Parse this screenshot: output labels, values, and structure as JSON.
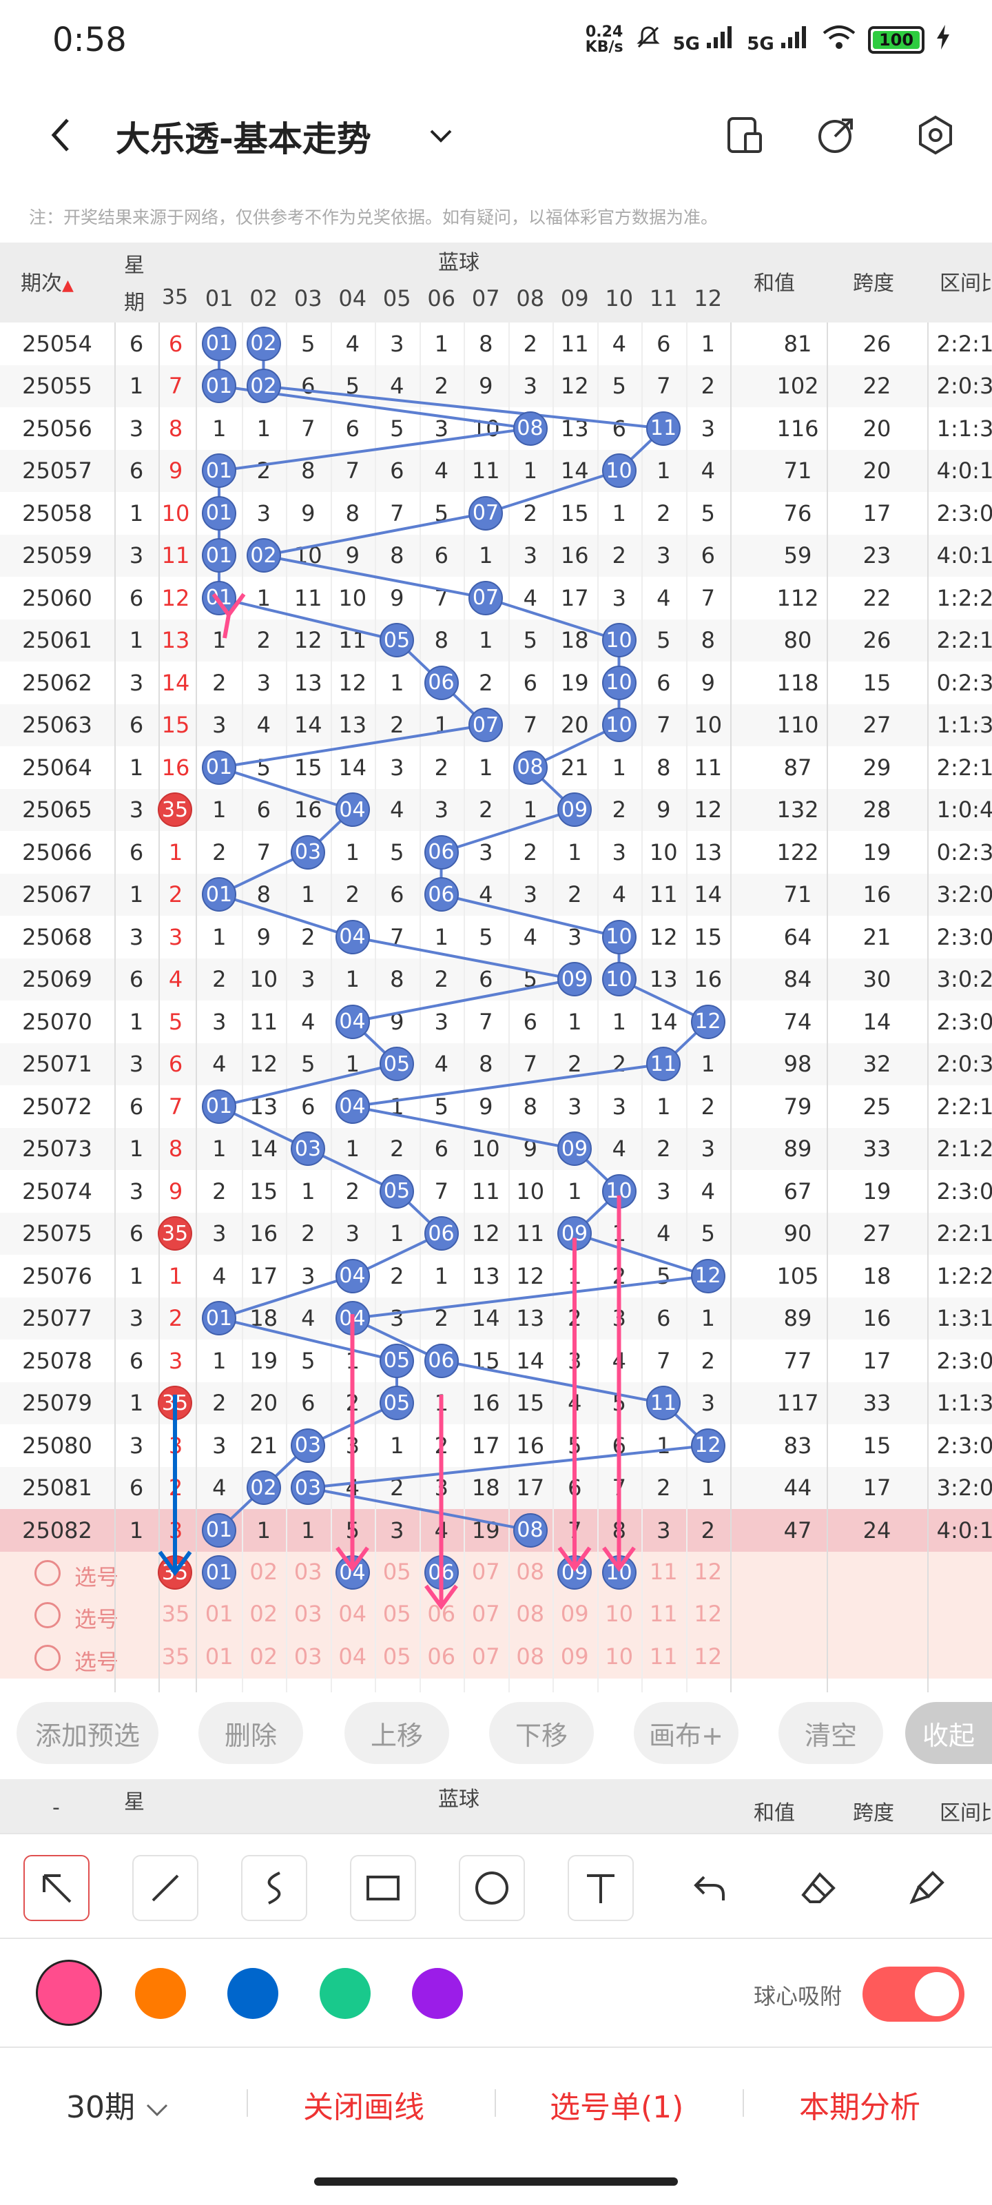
{
  "status_bar": {
    "time": "0:58",
    "net_speed_value": "0.24",
    "net_speed_unit": "KB/s",
    "signal_1": "5G",
    "signal_2": "5G",
    "battery": "100"
  },
  "header": {
    "title": "大乐透-基本走势",
    "icons": [
      "back-icon",
      "chevron-down-icon",
      "phone-icon",
      "share-icon",
      "settings-icon"
    ]
  },
  "note": "注：开奖结果来源于网络，仅供参考不作为兑奖依据。如有疑问，以福体彩官方数据为准。",
  "table": {
    "col_issue": "期次",
    "col_week": "星期",
    "col_week_top": "星",
    "col_week_bottom": "期",
    "col_blue_group": "蓝球",
    "col_sum": "和值",
    "col_span": "跨度",
    "col_zone": "区间比",
    "front_last_label": "35",
    "blue_labels": [
      "01",
      "02",
      "03",
      "04",
      "05",
      "06",
      "07",
      "08",
      "09",
      "10",
      "11",
      "12"
    ],
    "rows": [
      {
        "issue": "25054",
        "week": "6",
        "miss": "6",
        "nums": [
          "01",
          "02",
          "5",
          "4",
          "3",
          "1",
          "8",
          "2",
          "11",
          "4",
          "6",
          "1"
        ],
        "hit": [
          0,
          1
        ],
        "sum": "81",
        "span": "26",
        "zone": "2:2:1"
      },
      {
        "issue": "25055",
        "week": "1",
        "miss": "7",
        "nums": [
          "01",
          "02",
          "6",
          "5",
          "4",
          "2",
          "9",
          "3",
          "12",
          "5",
          "7",
          "2"
        ],
        "hit": [
          0,
          1
        ],
        "sum": "102",
        "span": "22",
        "zone": "2:0:3"
      },
      {
        "issue": "25056",
        "week": "3",
        "miss": "8",
        "nums": [
          "1",
          "1",
          "7",
          "6",
          "5",
          "3",
          "10",
          "08",
          "13",
          "6",
          "11",
          "3"
        ],
        "hit": [
          7,
          10
        ],
        "sum": "116",
        "span": "20",
        "zone": "1:1:3"
      },
      {
        "issue": "25057",
        "week": "6",
        "miss": "9",
        "nums": [
          "01",
          "2",
          "8",
          "7",
          "6",
          "4",
          "11",
          "1",
          "14",
          "10",
          "1",
          "4"
        ],
        "hit": [
          0,
          9
        ],
        "sum": "71",
        "span": "20",
        "zone": "4:0:1"
      },
      {
        "issue": "25058",
        "week": "1",
        "miss": "10",
        "nums": [
          "01",
          "3",
          "9",
          "8",
          "7",
          "5",
          "07",
          "2",
          "15",
          "1",
          "2",
          "5"
        ],
        "hit": [
          0,
          6
        ],
        "sum": "76",
        "span": "17",
        "zone": "2:3:0"
      },
      {
        "issue": "25059",
        "week": "3",
        "miss": "11",
        "nums": [
          "01",
          "02",
          "10",
          "9",
          "8",
          "6",
          "1",
          "3",
          "16",
          "2",
          "3",
          "6"
        ],
        "hit": [
          0,
          1
        ],
        "sum": "59",
        "span": "23",
        "zone": "4:0:1"
      },
      {
        "issue": "25060",
        "week": "6",
        "miss": "12",
        "nums": [
          "01",
          "1",
          "11",
          "10",
          "9",
          "7",
          "07",
          "4",
          "17",
          "3",
          "4",
          "7"
        ],
        "hit": [
          0,
          6
        ],
        "sum": "112",
        "span": "22",
        "zone": "1:2:2"
      },
      {
        "issue": "25061",
        "week": "1",
        "miss": "13",
        "nums": [
          "1",
          "2",
          "12",
          "11",
          "05",
          "8",
          "1",
          "5",
          "18",
          "10",
          "5",
          "8"
        ],
        "hit": [
          4,
          9
        ],
        "sum": "80",
        "span": "26",
        "zone": "2:2:1"
      },
      {
        "issue": "25062",
        "week": "3",
        "miss": "14",
        "nums": [
          "2",
          "3",
          "13",
          "12",
          "1",
          "06",
          "2",
          "6",
          "19",
          "10",
          "6",
          "9"
        ],
        "hit": [
          5,
          9
        ],
        "sum": "118",
        "span": "15",
        "zone": "0:2:3"
      },
      {
        "issue": "25063",
        "week": "6",
        "miss": "15",
        "nums": [
          "3",
          "4",
          "14",
          "13",
          "2",
          "1",
          "07",
          "7",
          "20",
          "10",
          "7",
          "10"
        ],
        "hit": [
          6,
          9
        ],
        "sum": "110",
        "span": "27",
        "zone": "1:1:3"
      },
      {
        "issue": "25064",
        "week": "1",
        "miss": "16",
        "nums": [
          "01",
          "5",
          "15",
          "14",
          "3",
          "2",
          "1",
          "08",
          "21",
          "1",
          "8",
          "11"
        ],
        "hit": [
          0,
          7
        ],
        "sum": "87",
        "span": "29",
        "zone": "2:2:1"
      },
      {
        "issue": "25065",
        "week": "3",
        "miss": "35",
        "nums": [
          "1",
          "6",
          "16",
          "04",
          "4",
          "3",
          "2",
          "1",
          "09",
          "2",
          "9",
          "12"
        ],
        "hit": [
          3,
          8
        ],
        "sum": "132",
        "span": "28",
        "zone": "1:0:4"
      },
      {
        "issue": "25066",
        "week": "6",
        "miss": "1",
        "nums": [
          "2",
          "7",
          "03",
          "1",
          "5",
          "06",
          "3",
          "2",
          "1",
          "3",
          "10",
          "13"
        ],
        "hit": [
          2,
          5
        ],
        "sum": "122",
        "span": "19",
        "zone": "0:2:3"
      },
      {
        "issue": "25067",
        "week": "1",
        "miss": "2",
        "nums": [
          "01",
          "8",
          "1",
          "2",
          "6",
          "06",
          "4",
          "3",
          "2",
          "4",
          "11",
          "14"
        ],
        "hit": [
          0,
          5
        ],
        "sum": "71",
        "span": "16",
        "zone": "3:2:0"
      },
      {
        "issue": "25068",
        "week": "3",
        "miss": "3",
        "nums": [
          "1",
          "9",
          "2",
          "04",
          "7",
          "1",
          "5",
          "4",
          "3",
          "10",
          "12",
          "15"
        ],
        "hit": [
          3,
          9
        ],
        "sum": "64",
        "span": "21",
        "zone": "2:3:0"
      },
      {
        "issue": "25069",
        "week": "6",
        "miss": "4",
        "nums": [
          "2",
          "10",
          "3",
          "1",
          "8",
          "2",
          "6",
          "5",
          "09",
          "10",
          "13",
          "16"
        ],
        "hit": [
          8,
          9
        ],
        "sum": "84",
        "span": "30",
        "zone": "3:0:2"
      },
      {
        "issue": "25070",
        "week": "1",
        "miss": "5",
        "nums": [
          "3",
          "11",
          "4",
          "04",
          "9",
          "3",
          "7",
          "6",
          "1",
          "1",
          "14",
          "12"
        ],
        "hit": [
          3,
          11
        ],
        "sum": "74",
        "span": "14",
        "zone": "2:3:0"
      },
      {
        "issue": "25071",
        "week": "3",
        "miss": "6",
        "nums": [
          "4",
          "12",
          "5",
          "1",
          "05",
          "4",
          "8",
          "7",
          "2",
          "2",
          "11",
          "1"
        ],
        "hit": [
          4,
          10
        ],
        "sum": "98",
        "span": "32",
        "zone": "2:0:3"
      },
      {
        "issue": "25072",
        "week": "6",
        "miss": "7",
        "nums": [
          "01",
          "13",
          "6",
          "04",
          "1",
          "5",
          "9",
          "8",
          "3",
          "3",
          "1",
          "2"
        ],
        "hit": [
          0,
          3
        ],
        "sum": "79",
        "span": "25",
        "zone": "2:2:1"
      },
      {
        "issue": "25073",
        "week": "1",
        "miss": "8",
        "nums": [
          "1",
          "14",
          "03",
          "1",
          "2",
          "6",
          "10",
          "9",
          "09",
          "4",
          "2",
          "3"
        ],
        "hit": [
          2,
          8
        ],
        "sum": "89",
        "span": "33",
        "zone": "2:1:2"
      },
      {
        "issue": "25074",
        "week": "3",
        "miss": "9",
        "nums": [
          "2",
          "15",
          "1",
          "2",
          "05",
          "7",
          "11",
          "10",
          "1",
          "10",
          "3",
          "4"
        ],
        "hit": [
          4,
          9
        ],
        "sum": "67",
        "span": "19",
        "zone": "2:3:0"
      },
      {
        "issue": "25075",
        "week": "6",
        "miss": "35",
        "nums": [
          "3",
          "16",
          "2",
          "3",
          "1",
          "06",
          "12",
          "11",
          "09",
          "1",
          "4",
          "5"
        ],
        "hit": [
          5,
          8
        ],
        "sum": "90",
        "span": "27",
        "zone": "2:2:1"
      },
      {
        "issue": "25076",
        "week": "1",
        "miss": "1",
        "nums": [
          "4",
          "17",
          "3",
          "04",
          "2",
          "1",
          "13",
          "12",
          "1",
          "2",
          "5",
          "12"
        ],
        "hit": [
          3,
          11
        ],
        "sum": "105",
        "span": "18",
        "zone": "1:2:2"
      },
      {
        "issue": "25077",
        "week": "3",
        "miss": "2",
        "nums": [
          "01",
          "18",
          "4",
          "04",
          "3",
          "2",
          "14",
          "13",
          "2",
          "3",
          "6",
          "1"
        ],
        "hit": [
          0,
          3
        ],
        "sum": "89",
        "span": "16",
        "zone": "1:3:1"
      },
      {
        "issue": "25078",
        "week": "6",
        "miss": "3",
        "nums": [
          "1",
          "19",
          "5",
          "1",
          "05",
          "06",
          "15",
          "14",
          "3",
          "4",
          "7",
          "2"
        ],
        "hit": [
          4,
          5
        ],
        "sum": "77",
        "span": "17",
        "zone": "2:3:0"
      },
      {
        "issue": "25079",
        "week": "1",
        "miss": "35",
        "nums": [
          "2",
          "20",
          "6",
          "2",
          "05",
          "1",
          "16",
          "15",
          "4",
          "5",
          "11",
          "3"
        ],
        "hit": [
          4,
          10
        ],
        "sum": "117",
        "span": "33",
        "zone": "1:1:3"
      },
      {
        "issue": "25080",
        "week": "3",
        "miss": "3",
        "nums": [
          "3",
          "21",
          "03",
          "3",
          "1",
          "2",
          "17",
          "16",
          "5",
          "6",
          "1",
          "12"
        ],
        "hit": [
          2,
          11
        ],
        "sum": "83",
        "span": "15",
        "zone": "2:3:0"
      },
      {
        "issue": "25081",
        "week": "6",
        "miss": "2",
        "nums": [
          "4",
          "02",
          "03",
          "4",
          "2",
          "3",
          "18",
          "17",
          "6",
          "7",
          "2",
          "1"
        ],
        "hit": [
          1,
          2
        ],
        "sum": "44",
        "span": "17",
        "zone": "3:2:0"
      },
      {
        "issue": "25082",
        "week": "1",
        "miss": "3",
        "nums": [
          "01",
          "1",
          "1",
          "5",
          "3",
          "4",
          "19",
          "08",
          "7",
          "8",
          "3",
          "2"
        ],
        "hit": [
          0,
          7
        ],
        "sum": "47",
        "span": "24",
        "zone": "4:0:1"
      }
    ],
    "select_rows": [
      {
        "label": "选号",
        "miss": "35",
        "picked": [
          0,
          3,
          5,
          8,
          9
        ]
      },
      {
        "label": "选号",
        "miss": "35",
        "picked": []
      },
      {
        "label": "选号",
        "miss": "35",
        "picked": []
      }
    ]
  },
  "actions": [
    "添加预选",
    "删除",
    "上移",
    "下移",
    "画布+",
    "清空",
    "收起"
  ],
  "draw_tools": [
    "arrow-icon",
    "line-icon",
    "curve-icon",
    "rectangle-icon",
    "circle-icon",
    "text-icon",
    "undo-icon",
    "eraser-icon",
    "clear-icon"
  ],
  "colors": [
    "#ff4d8d",
    "#ff7a00",
    "#0066cc",
    "#19c98c",
    "#9b1de8"
  ],
  "snap_label": "球心吸附",
  "snap_on": true,
  "footer": {
    "period": "30期",
    "close_lines": "关闭画线",
    "picks": "选号单(1)",
    "analysis": "本期分析"
  }
}
